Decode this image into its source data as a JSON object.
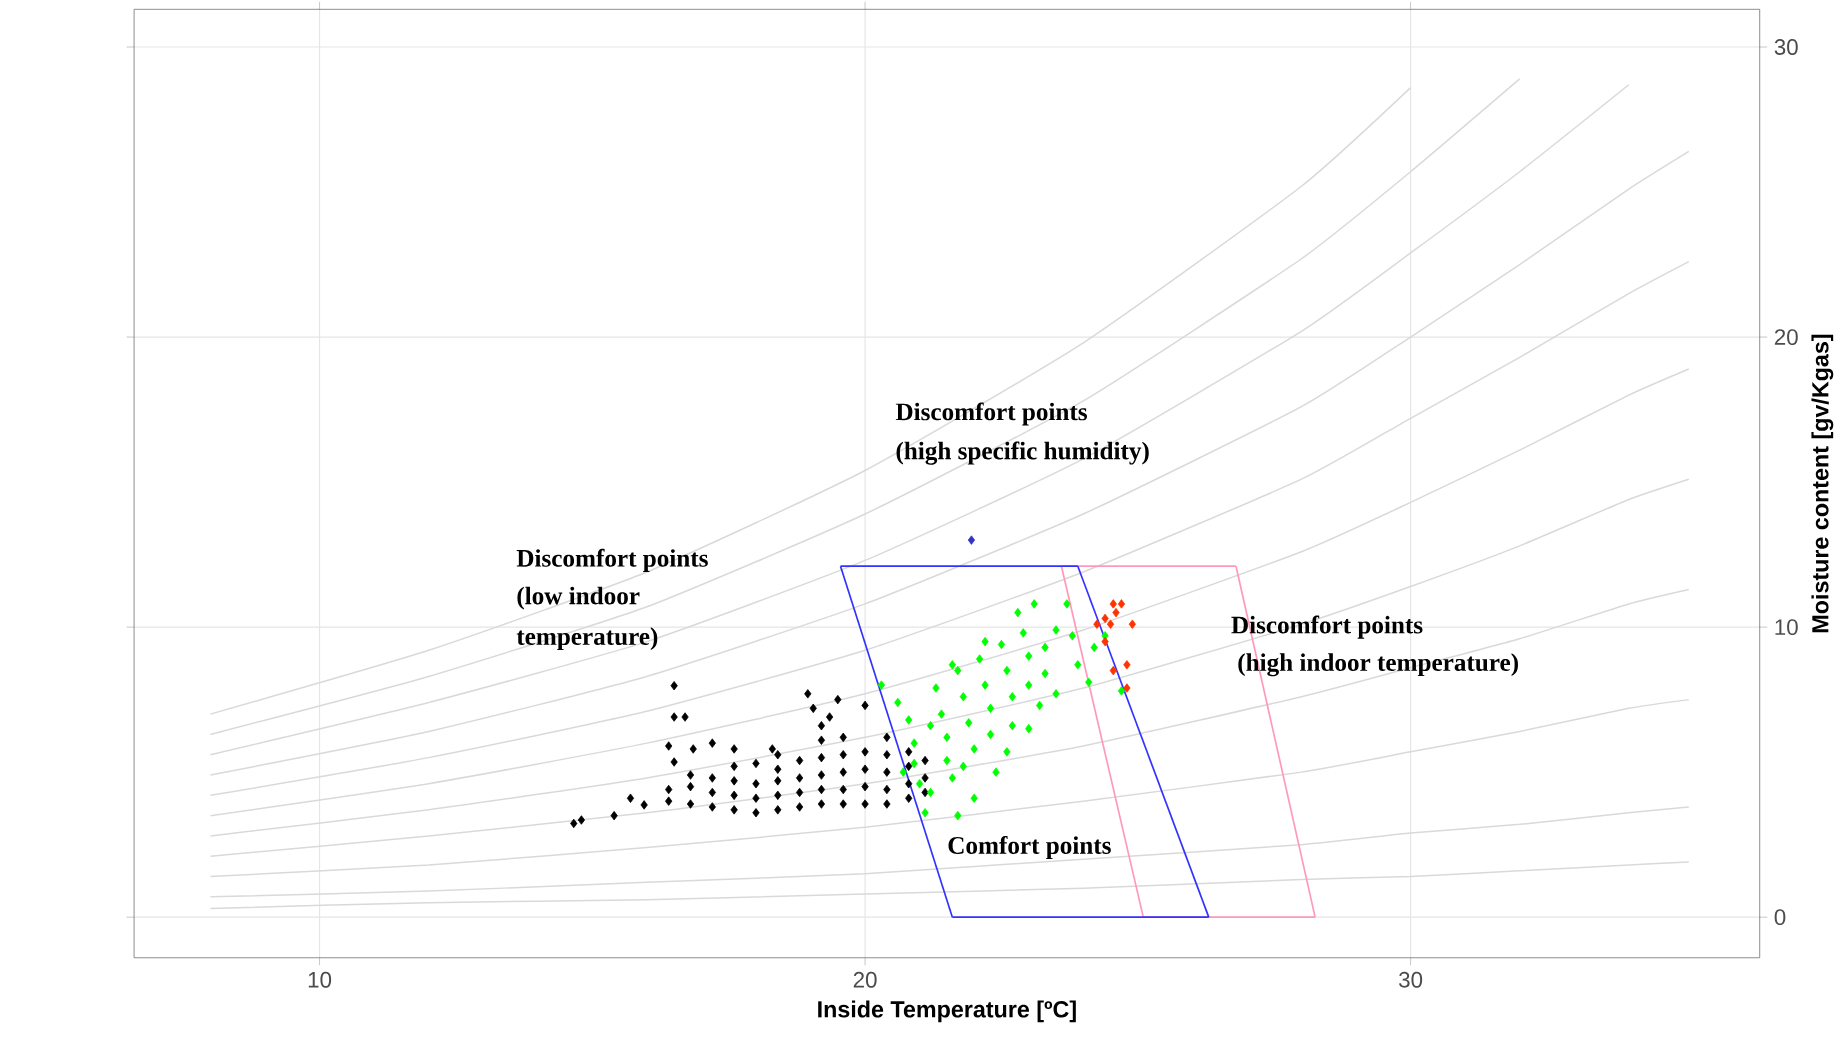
{
  "chart_data": {
    "type": "scatter",
    "xlabel": "Inside Temperature [ºC]",
    "ylabel": "Moisture content [gv/Kgas]",
    "xlim": [
      6.6,
      36.4
    ],
    "ylim": [
      -1.4,
      31.3
    ],
    "xticks": [
      10,
      20,
      30
    ],
    "yticks": [
      0,
      10,
      20,
      30
    ],
    "grid": true,
    "series": [
      {
        "type": "line",
        "color": "#d9d9d9",
        "x": [
          8,
          12,
          16,
          20,
          24,
          28,
          30
        ],
        "values": [
          7.0,
          9.2,
          11.9,
          15.4,
          19.8,
          25.2,
          28.6
        ]
      },
      {
        "type": "line",
        "color": "#d9d9d9",
        "x": [
          8,
          12,
          16,
          20,
          24,
          28,
          30,
          32
        ],
        "values": [
          6.3,
          8.3,
          10.7,
          13.9,
          17.8,
          22.7,
          25.7,
          28.9
        ]
      },
      {
        "type": "line",
        "color": "#d9d9d9",
        "x": [
          8,
          12,
          16,
          20,
          24,
          28,
          30,
          32,
          34
        ],
        "values": [
          5.6,
          7.4,
          9.5,
          12.3,
          15.8,
          20.2,
          22.9,
          25.7,
          28.7
        ]
      },
      {
        "type": "line",
        "color": "#d9d9d9",
        "x": [
          8,
          12,
          16,
          20,
          24,
          28,
          30,
          32,
          34,
          35.1
        ],
        "values": [
          4.9,
          6.4,
          8.3,
          10.8,
          13.9,
          17.6,
          20.0,
          22.5,
          25.1,
          26.4
        ]
      },
      {
        "type": "line",
        "color": "#d9d9d9",
        "x": [
          8,
          12,
          16,
          20,
          24,
          28,
          30,
          32,
          34,
          35.1
        ],
        "values": [
          4.2,
          5.5,
          7.1,
          9.2,
          11.9,
          15.1,
          17.2,
          19.3,
          21.5,
          22.6
        ]
      },
      {
        "type": "line",
        "color": "#d9d9d9",
        "x": [
          8,
          12,
          16,
          20,
          24,
          28,
          30,
          32,
          34,
          35.1
        ],
        "values": [
          3.5,
          4.6,
          6.0,
          7.7,
          9.9,
          12.6,
          14.3,
          16.1,
          18.0,
          18.9
        ]
      },
      {
        "type": "line",
        "color": "#d9d9d9",
        "x": [
          8,
          12,
          16,
          20,
          24,
          28,
          30,
          32,
          34,
          35.1
        ],
        "values": [
          2.8,
          3.7,
          4.8,
          6.2,
          7.9,
          10.1,
          11.4,
          12.8,
          14.4,
          15.1
        ]
      },
      {
        "type": "line",
        "color": "#d9d9d9",
        "x": [
          8,
          12,
          16,
          20,
          24,
          28,
          30,
          32,
          34,
          35.1
        ],
        "values": [
          2.1,
          2.8,
          3.6,
          4.6,
          5.9,
          7.6,
          8.6,
          9.6,
          10.8,
          11.3
        ]
      },
      {
        "type": "line",
        "color": "#d9d9d9",
        "x": [
          8,
          12,
          16,
          20,
          24,
          28,
          30,
          32,
          34,
          35.1
        ],
        "values": [
          1.4,
          1.8,
          2.4,
          3.1,
          4.0,
          5.0,
          5.7,
          6.4,
          7.2,
          7.5
        ]
      },
      {
        "type": "line",
        "color": "#d9d9d9",
        "x": [
          8,
          12,
          16,
          20,
          24,
          28,
          30,
          32,
          34,
          35.1
        ],
        "values": [
          0.7,
          0.9,
          1.2,
          1.5,
          2.0,
          2.5,
          2.9,
          3.2,
          3.6,
          3.8
        ]
      },
      {
        "type": "line",
        "color": "#d9d9d9",
        "x": [
          8,
          12,
          16,
          20,
          24,
          28,
          30,
          32,
          34,
          35.1
        ],
        "values": [
          0.3,
          0.5,
          0.6,
          0.8,
          1.0,
          1.3,
          1.4,
          1.6,
          1.8,
          1.9
        ]
      },
      {
        "type": "line",
        "color": "#ff99bb",
        "x": [
          25.1,
          28.25
        ],
        "values": [
          0,
          0
        ]
      },
      {
        "type": "line",
        "color": "#ff99bb",
        "x": [
          26.8,
          28.25
        ],
        "values": [
          12.1,
          0
        ]
      },
      {
        "type": "line",
        "color": "#ff99bb",
        "x": [
          23.6,
          26.8
        ],
        "values": [
          12.1,
          12.1
        ]
      },
      {
        "type": "line",
        "color": "#ff99bb",
        "x": [
          23.6,
          25.1
        ],
        "values": [
          12.1,
          0
        ]
      },
      {
        "type": "line",
        "color": "#3333ff",
        "x": [
          21.6,
          26.3
        ],
        "values": [
          0,
          0
        ]
      },
      {
        "type": "line",
        "color": "#3333ff",
        "x": [
          23.9,
          26.3
        ],
        "values": [
          12.1,
          0
        ]
      },
      {
        "type": "line",
        "color": "#3333ff",
        "x": [
          19.55,
          23.9
        ],
        "values": [
          12.1,
          12.1
        ]
      },
      {
        "type": "line",
        "color": "#3333ff",
        "x": [
          19.55,
          21.6
        ],
        "values": [
          12.1,
          0
        ]
      },
      {
        "marker": "diamond",
        "color": "#000000",
        "x": [
          14.66,
          14.8,
          15.4,
          15.7,
          15.95,
          16.5,
          16.5,
          16.7,
          16.4,
          16.5,
          16.85,
          17.2,
          17.6,
          18.95,
          19.05,
          19.5,
          19.35,
          19.2,
          20.0,
          18.3,
          16.4,
          16.4,
          16.8,
          16.8,
          16.8,
          17.2,
          17.2,
          17.2,
          17.6,
          17.6,
          17.6,
          17.6,
          18.0,
          18.0,
          18.0,
          18.0,
          18.4,
          18.4,
          18.4,
          18.4,
          18.4,
          18.8,
          18.8,
          18.8,
          18.8,
          19.2,
          19.2,
          19.2,
          19.2,
          19.2,
          19.6,
          19.6,
          19.6,
          19.6,
          19.6,
          20.0,
          20.0,
          20.0,
          20.0,
          20.4,
          20.4,
          20.4,
          20.4,
          20.4,
          20.8,
          20.8,
          20.8,
          20.8,
          21.1,
          21.1,
          21.1
        ],
        "values": [
          3.23,
          3.35,
          3.5,
          4.1,
          3.87,
          7.98,
          6.9,
          6.9,
          5.9,
          5.35,
          5.8,
          6.0,
          5.8,
          7.7,
          7.2,
          7.5,
          6.9,
          6.6,
          7.3,
          5.8,
          4.0,
          4.4,
          3.9,
          4.5,
          4.9,
          3.8,
          4.3,
          4.8,
          3.7,
          4.2,
          4.7,
          5.2,
          3.6,
          4.1,
          4.6,
          5.3,
          3.7,
          4.2,
          4.7,
          5.1,
          5.6,
          3.8,
          4.3,
          4.8,
          5.4,
          3.9,
          4.4,
          4.9,
          5.5,
          6.1,
          3.9,
          4.4,
          5.0,
          5.6,
          6.2,
          3.9,
          4.5,
          5.1,
          5.7,
          3.9,
          4.4,
          5.0,
          5.6,
          6.2,
          4.1,
          4.6,
          5.2,
          5.7,
          4.3,
          4.8,
          5.4
        ]
      },
      {
        "marker": "diamond",
        "color": "#00ff00",
        "x": [
          20.3,
          20.6,
          20.8,
          20.9,
          20.9,
          21.0,
          21.2,
          21.3,
          21.4,
          21.5,
          21.5,
          21.6,
          21.7,
          21.8,
          21.9,
          22.0,
          22.0,
          22.1,
          22.2,
          22.3,
          22.3,
          22.4,
          22.5,
          22.6,
          22.7,
          22.7,
          22.8,
          22.9,
          23.0,
          23.0,
          23.0,
          23.1,
          23.2,
          23.3,
          23.3,
          23.5,
          23.5,
          23.7,
          23.8,
          23.9,
          24.1,
          24.2,
          24.4,
          24.7,
          21.2,
          21.8,
          22.6,
          22.2,
          21.6,
          20.7,
          21.1,
          21.7
        ],
        "values": [
          8.0,
          7.4,
          6.8,
          6.0,
          5.3,
          4.6,
          4.3,
          7.9,
          7.0,
          6.2,
          5.4,
          4.8,
          8.5,
          7.6,
          6.7,
          5.8,
          4.1,
          8.9,
          8.0,
          7.2,
          6.3,
          5.0,
          9.4,
          8.5,
          7.6,
          6.6,
          10.5,
          9.8,
          9.0,
          8.0,
          6.5,
          10.8,
          7.3,
          9.3,
          8.4,
          7.7,
          9.9,
          10.8,
          9.7,
          8.7,
          8.1,
          9.3,
          9.7,
          7.8,
          6.6,
          5.2,
          5.7,
          9.5,
          8.7,
          5.0,
          3.6,
          3.5
        ]
      },
      {
        "marker": "diamond",
        "color": "#ff3300",
        "x": [
          24.25,
          24.7,
          24.6,
          24.9,
          24.5,
          24.4,
          24.8,
          24.55,
          24.8,
          24.4,
          24.55
        ],
        "values": [
          10.1,
          10.8,
          10.5,
          10.1,
          10.1,
          9.5,
          8.7,
          8.5,
          7.9,
          10.3,
          10.8
        ]
      },
      {
        "marker": "diamond",
        "color": "#3333cc",
        "x": [
          21.95
        ],
        "values": [
          13.0
        ]
      }
    ],
    "annotations": [
      "Discomfort points",
      "(low indoor",
      "temperature)",
      "Discomfort points",
      "(high specific humidity)",
      "Discomfort points",
      " (high indoor temperature)",
      "Comfort points"
    ]
  }
}
